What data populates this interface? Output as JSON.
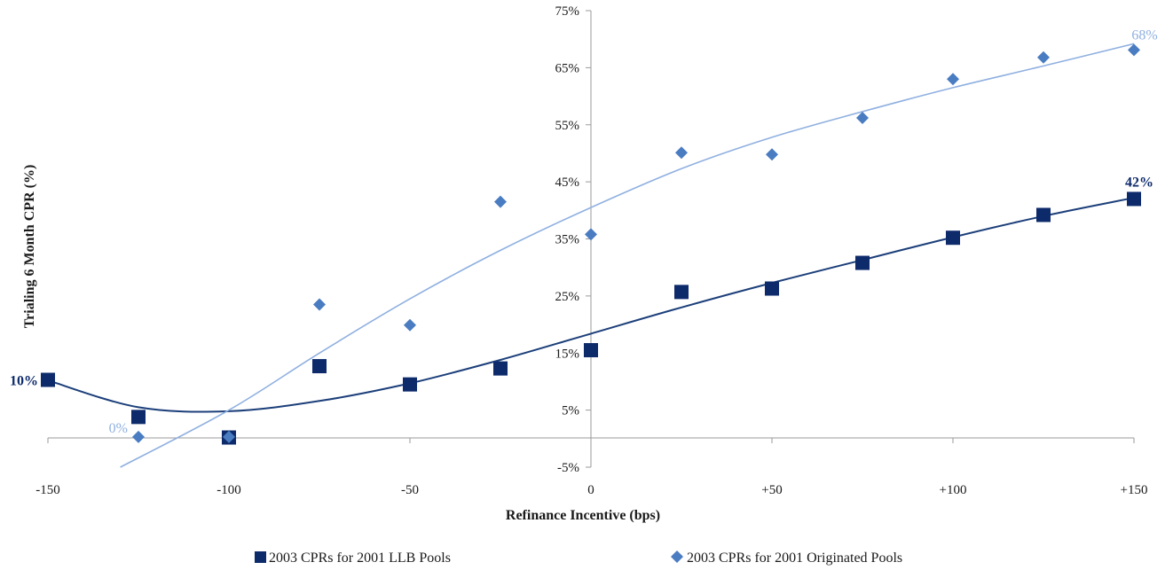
{
  "chart_data": {
    "type": "scatter",
    "title": "",
    "xlabel": "Refinance Incentive (bps)",
    "ylabel": "Trialing 6 Month CPR (%)",
    "xlim": [
      -150,
      150
    ],
    "ylim": [
      -5,
      75
    ],
    "x_ticks": [
      {
        "value": -150,
        "label": "-150"
      },
      {
        "value": -100,
        "label": "-100"
      },
      {
        "value": -50,
        "label": "-50"
      },
      {
        "value": 0,
        "label": "0"
      },
      {
        "value": 50,
        "label": "+50"
      },
      {
        "value": 100,
        "label": "+100"
      },
      {
        "value": 150,
        "label": "+150"
      }
    ],
    "y_ticks": [
      {
        "value": -5,
        "label": "-5%"
      },
      {
        "value": 5,
        "label": "5%"
      },
      {
        "value": 15,
        "label": "15%"
      },
      {
        "value": 25,
        "label": "25%"
      },
      {
        "value": 35,
        "label": "35%"
      },
      {
        "value": 45,
        "label": "45%"
      },
      {
        "value": 55,
        "label": "55%"
      },
      {
        "value": 65,
        "label": "65%"
      },
      {
        "value": 75,
        "label": "75%"
      }
    ],
    "grid": false,
    "legend_position": "bottom",
    "series": [
      {
        "name": "2003 CPRs for 2001 LLB Pools",
        "marker": "square",
        "color": "#0d2a6b",
        "x": [
          -150,
          -125,
          -100,
          -75,
          -50,
          -25,
          0,
          25,
          50,
          75,
          100,
          125,
          150
        ],
        "y": [
          10.3,
          3.8,
          0.2,
          12.7,
          9.5,
          12.3,
          15.5,
          25.7,
          26.3,
          30.8,
          35.2,
          39.2,
          42.0
        ],
        "trendline": {
          "type": "polynomial",
          "color": "#1c3f7a",
          "x": [
            -150,
            -125,
            -100,
            -75,
            -50,
            -25,
            0,
            25,
            50,
            75,
            100,
            125,
            150
          ],
          "y": [
            10.2,
            5.5,
            4.8,
            6.6,
            9.7,
            13.8,
            18.4,
            23.0,
            27.3,
            31.3,
            35.3,
            39.0,
            42.2
          ]
        },
        "end_labels": [
          {
            "x": -150,
            "y": 10.3,
            "text": "10%"
          },
          {
            "x": 150,
            "y": 42.0,
            "text": "42%"
          }
        ]
      },
      {
        "name": "2003 CPRs for 2001 Originated Pools",
        "marker": "diamond",
        "color": "#4a7cc2",
        "x": [
          -125,
          -100,
          -75,
          -50,
          -25,
          0,
          25,
          50,
          75,
          100,
          125,
          150
        ],
        "y": [
          0.3,
          0.3,
          23.5,
          19.9,
          41.5,
          35.8,
          50.1,
          49.8,
          56.2,
          63.0,
          66.8,
          68.1
        ],
        "trendline": {
          "type": "polynomial",
          "color": "#8fb0e0",
          "x": [
            -130,
            -100,
            -75,
            -50,
            -25,
            0,
            25,
            50,
            75,
            100,
            125,
            150
          ],
          "y": [
            -5.0,
            5.0,
            15.0,
            24.5,
            33.0,
            40.5,
            47.3,
            52.8,
            57.3,
            61.5,
            65.3,
            69.2
          ]
        },
        "end_labels": [
          {
            "x": -125,
            "y": 0.3,
            "text": "0%"
          },
          {
            "x": 150,
            "y": 68.1,
            "text": "68%"
          }
        ]
      }
    ]
  }
}
